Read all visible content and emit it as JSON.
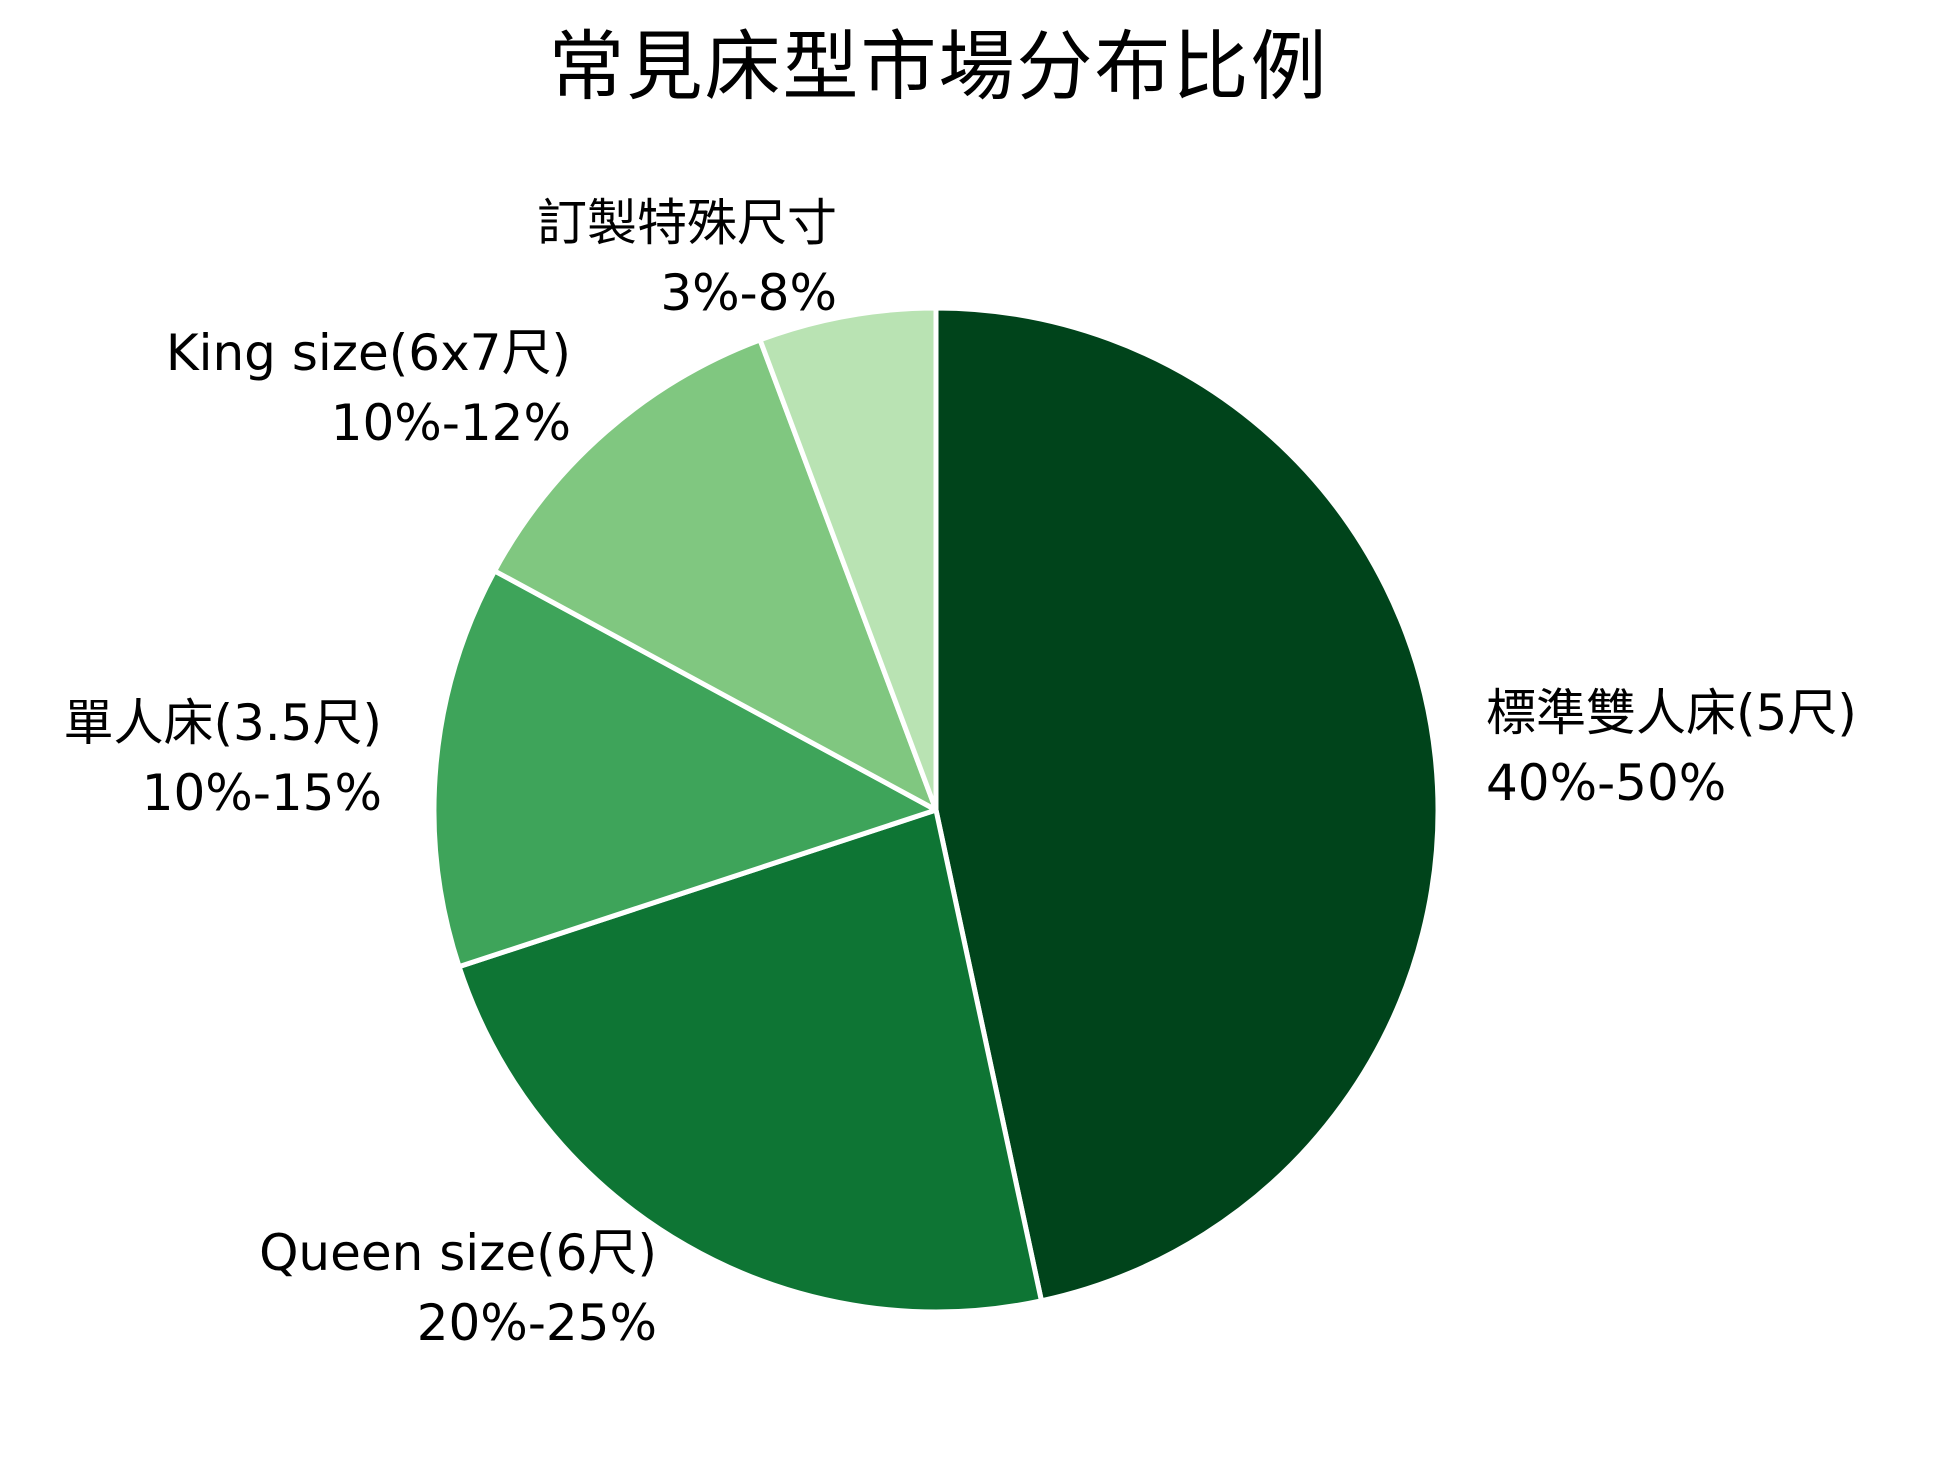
{
  "chart_data": {
    "type": "pie",
    "title": "常見床型市場分布比例",
    "categories": [
      "標準雙人床(5尺)",
      "Queen size(6尺)",
      "單人床(3.5尺)",
      "King size(6x7尺)",
      "訂製特殊尺寸"
    ],
    "values": [
      45,
      22.5,
      12.5,
      11,
      5.5
    ],
    "range_labels": [
      "40%-50%",
      "20%-25%",
      "10%-15%",
      "10%-12%",
      "3%-8%"
    ],
    "colors": [
      "#00441b",
      "#0e7534",
      "#3ea45a",
      "#80c780",
      "#b9e3b3"
    ],
    "start_angle_deg": 0,
    "direction": "clockwise",
    "edge_color": "#ffffff",
    "legend": "none"
  },
  "labels": [
    {
      "name": "標準雙人床(5尺)",
      "range": "40%-50%"
    },
    {
      "name": "Queen size(6尺)",
      "range": "20%-25%"
    },
    {
      "name": "單人床(3.5尺)",
      "range": "10%-15%"
    },
    {
      "name": "King size(6x7尺)",
      "range": "10%-12%"
    },
    {
      "name": "訂製特殊尺寸",
      "range": "3%-8%"
    }
  ]
}
